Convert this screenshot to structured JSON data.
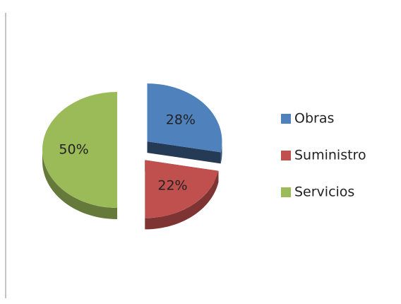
{
  "chart_data": {
    "type": "pie",
    "categories": [
      "Obras",
      "Suministro",
      "Servicios"
    ],
    "values": [
      28,
      22,
      50
    ],
    "value_labels": [
      "28%",
      "22%",
      "50%"
    ],
    "colors": [
      "#4f81bd",
      "#c0504d",
      "#9bbb59"
    ],
    "legend": "right"
  }
}
